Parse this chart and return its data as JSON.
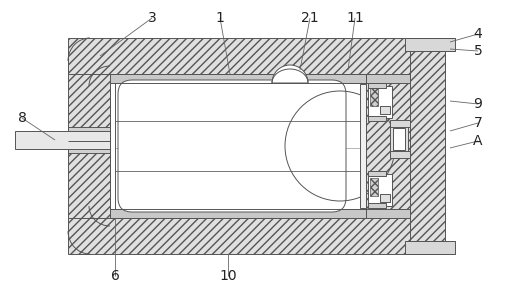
{
  "background_color": "#ffffff",
  "line_color": "#555555",
  "hatch_color": "#555555",
  "label_fontsize": 10,
  "fig_w": 5.06,
  "fig_h": 2.96,
  "dpi": 100
}
